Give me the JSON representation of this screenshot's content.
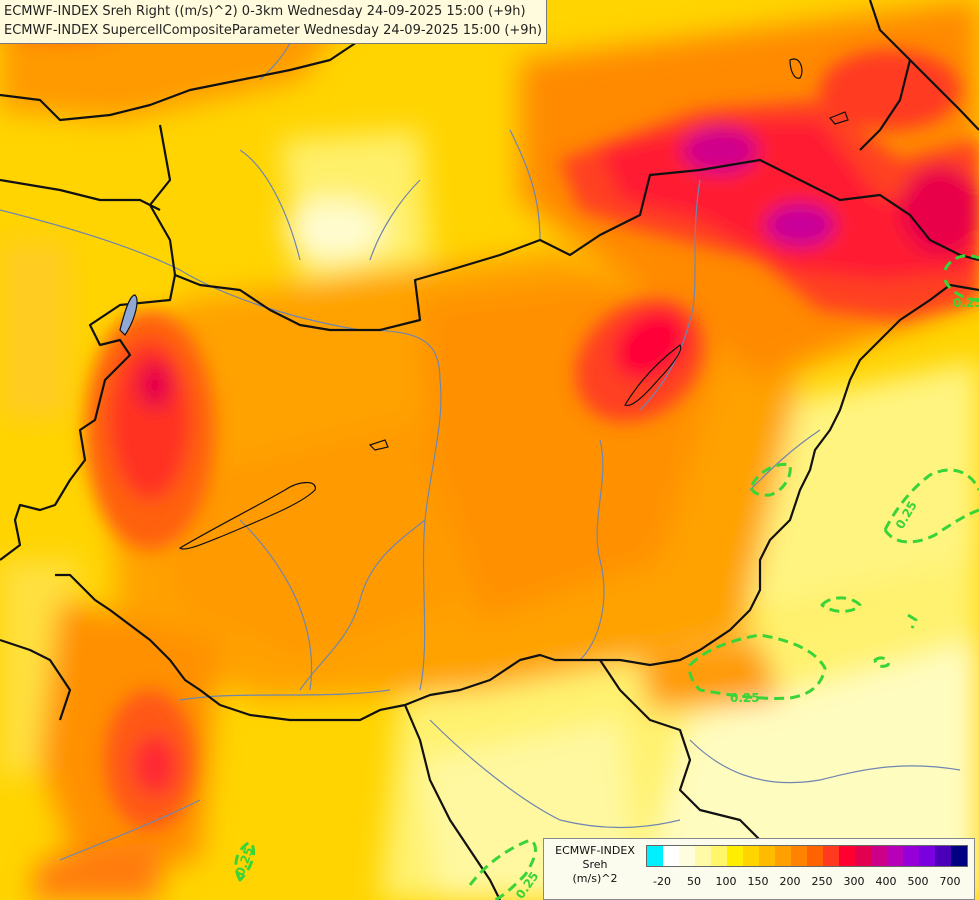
{
  "titles": {
    "line1": "ECMWF-INDEX Sreh Right ((m/s)^2) 0-3km Wednesday 24-09-2025 15:00 (+9h)",
    "line2": "ECMWF-INDEX SupercellCompositeParameter Wednesday 24-09-2025 15:00 (+9h)"
  },
  "legend": {
    "title_line1": "ECMWF-INDEX",
    "title_line2": "Sreh",
    "title_line3": "(m/s)^2",
    "colors": [
      "#00f0ff",
      "#ffffff",
      "#fffde0",
      "#fffaa8",
      "#fff66a",
      "#ffee00",
      "#ffd500",
      "#ffbb00",
      "#ff9f00",
      "#ff8200",
      "#ff6200",
      "#ff3a1f",
      "#ff0030",
      "#e20050",
      "#cc0088",
      "#b800b8",
      "#9600d8",
      "#7a00e0",
      "#4a00b8",
      "#000080"
    ],
    "tick_labels": [
      "-20",
      "50",
      "100",
      "150",
      "200",
      "250",
      "300",
      "400",
      "500",
      "700"
    ]
  },
  "contours": {
    "label": "0.25",
    "color": "#38d438"
  }
}
